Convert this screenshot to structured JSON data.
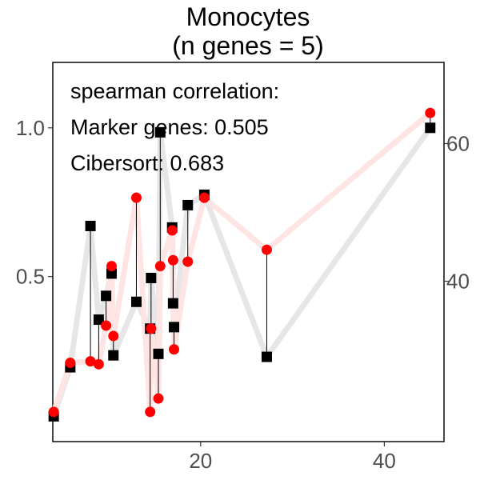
{
  "chart_data": {
    "type": "scatter",
    "title_line1": "Monocytes",
    "title_line2": "(n genes = 5)",
    "annotations": [
      "spearman correlation:",
      "Marker genes: 0.505",
      "Cibersort: 0.683"
    ],
    "xlabel": "",
    "ylabel_left": "",
    "ylabel_right": "",
    "x_ticks": [
      20,
      40
    ],
    "y_left_ticks": [
      0.5,
      1.0
    ],
    "y_left_tick_labels": [
      "0.5",
      "1.0"
    ],
    "y_right_ticks": [
      40,
      60
    ],
    "xlim": [
      3.9,
      46.5
    ],
    "ylim_left": [
      -0.055,
      1.22
    ],
    "ylim_right": [
      16.7,
      71.8
    ],
    "grid": false,
    "legend": "none",
    "marker_series": {
      "marker": "square",
      "color": "#000000",
      "line_color": "#e6e6e6",
      "points": [
        {
          "x": 4.0,
          "y": 0.03
        },
        {
          "x": 5.8,
          "y": 0.195
        },
        {
          "x": 8.0,
          "y": 0.67
        },
        {
          "x": 8.9,
          "y": 0.355
        },
        {
          "x": 9.7,
          "y": 0.435
        },
        {
          "x": 10.3,
          "y": 0.51
        },
        {
          "x": 10.5,
          "y": 0.235
        },
        {
          "x": 13.0,
          "y": 0.415
        },
        {
          "x": 14.5,
          "y": 0.325
        },
        {
          "x": 14.6,
          "y": 0.495
        },
        {
          "x": 15.4,
          "y": 0.24
        },
        {
          "x": 15.6,
          "y": 0.985
        },
        {
          "x": 16.9,
          "y": 0.665
        },
        {
          "x": 17.0,
          "y": 0.41
        },
        {
          "x": 17.1,
          "y": 0.33
        },
        {
          "x": 18.6,
          "y": 0.74
        },
        {
          "x": 20.4,
          "y": 0.775
        },
        {
          "x": 27.2,
          "y": 0.23
        },
        {
          "x": 45.0,
          "y": 1.0
        }
      ]
    },
    "cibersort_series": {
      "marker": "circle",
      "color": "#ff0000",
      "line_color": "#ffe4e4",
      "points": [
        {
          "x": 4.0,
          "y": 0.045
        },
        {
          "x": 5.8,
          "y": 0.21
        },
        {
          "x": 8.0,
          "y": 0.215
        },
        {
          "x": 8.9,
          "y": 0.205
        },
        {
          "x": 9.7,
          "y": 0.335
        },
        {
          "x": 10.3,
          "y": 0.535
        },
        {
          "x": 10.5,
          "y": 0.3
        },
        {
          "x": 13.0,
          "y": 0.765
        },
        {
          "x": 14.5,
          "y": 0.045
        },
        {
          "x": 14.6,
          "y": 0.325
        },
        {
          "x": 15.4,
          "y": 0.09
        },
        {
          "x": 15.6,
          "y": 0.535
        },
        {
          "x": 16.9,
          "y": 0.655
        },
        {
          "x": 17.0,
          "y": 0.555
        },
        {
          "x": 17.1,
          "y": 0.255
        },
        {
          "x": 18.6,
          "y": 0.55
        },
        {
          "x": 20.4,
          "y": 0.765
        },
        {
          "x": 27.2,
          "y": 0.59
        },
        {
          "x": 45.0,
          "y": 1.05
        }
      ]
    }
  }
}
